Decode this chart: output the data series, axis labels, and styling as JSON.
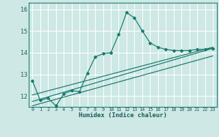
{
  "xlabel": "Humidex (Indice chaleur)",
  "bg_color": "#cde8e5",
  "grid_color": "#ffffff",
  "line_color": "#1a7a6e",
  "xlim": [
    -0.5,
    23.5
  ],
  "ylim": [
    11.5,
    16.3
  ],
  "xticks": [
    0,
    1,
    2,
    3,
    4,
    5,
    6,
    7,
    8,
    9,
    10,
    11,
    12,
    13,
    14,
    15,
    16,
    17,
    18,
    19,
    20,
    21,
    22,
    23
  ],
  "yticks": [
    12,
    13,
    14,
    15,
    16
  ],
  "main_x": [
    0,
    1,
    2,
    3,
    4,
    5,
    6,
    7,
    8,
    9,
    10,
    11,
    12,
    13,
    14,
    15,
    16,
    17,
    18,
    19,
    20,
    21,
    22,
    23
  ],
  "main_y": [
    12.7,
    11.8,
    11.9,
    11.55,
    12.1,
    12.25,
    12.2,
    13.05,
    13.8,
    13.95,
    14.0,
    14.85,
    15.85,
    15.6,
    15.0,
    14.45,
    14.25,
    14.15,
    14.1,
    14.1,
    14.1,
    14.15,
    14.15,
    14.2
  ],
  "line1_y_start": 11.75,
  "line1_y_end": 14.2,
  "line2_y_start": 12.05,
  "line2_y_end": 14.25,
  "line3_y_start": 11.55,
  "line3_y_end": 13.85
}
